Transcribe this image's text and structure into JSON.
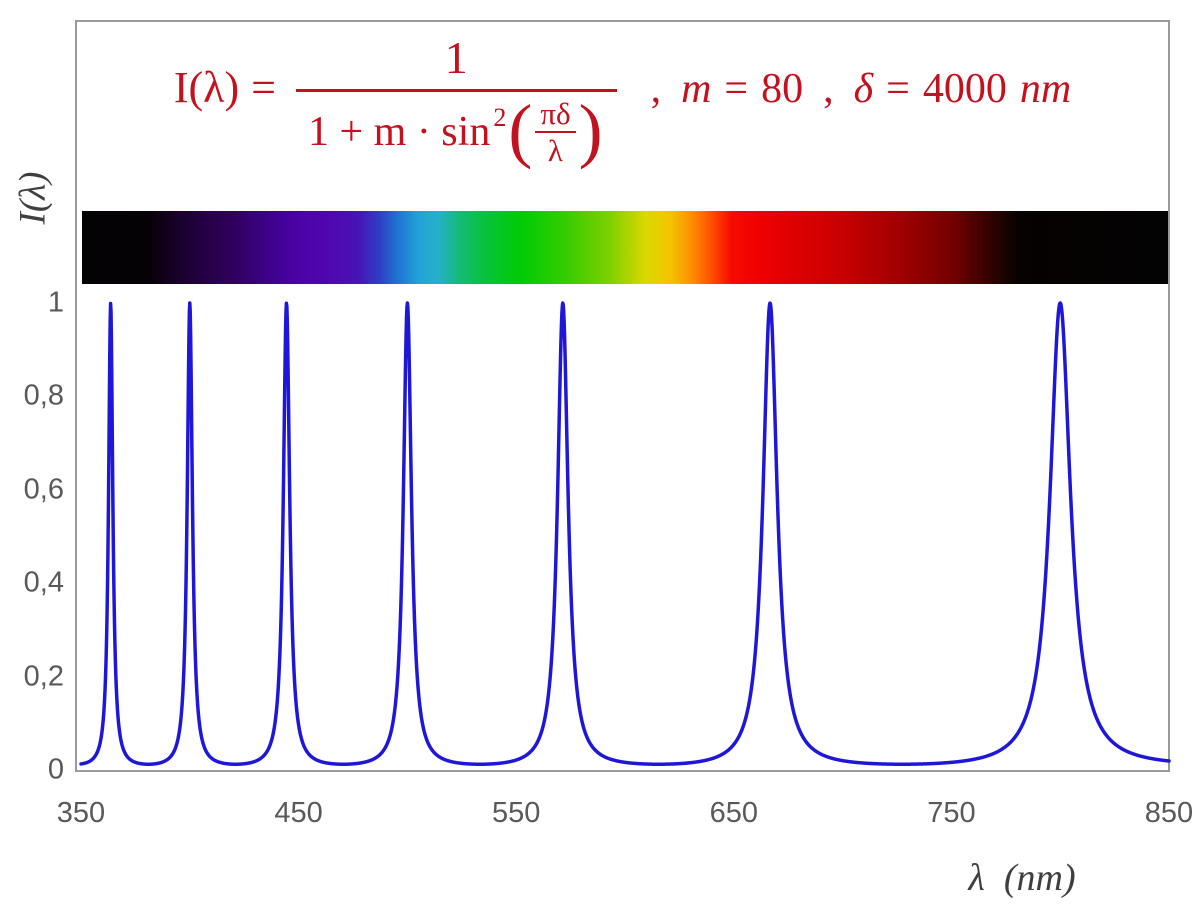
{
  "figure": {
    "frame_border_color": "#9a9a9a",
    "background_color": "#ffffff"
  },
  "formula": {
    "color": "#c3121f",
    "lhs": "I(λ)",
    "eq": "=",
    "numerator": "1",
    "den_prefix": "1 + m · sin",
    "den_exponent": "2",
    "paren_open": "(",
    "paren_close": ")",
    "inner_num": "πδ",
    "inner_den": "λ",
    "comma1": ",",
    "p1_var": "m",
    "p1_eq": "=",
    "p1_val": "80",
    "comma2": ",",
    "p2_var": "δ",
    "p2_eq": "=",
    "p2_val": "4000",
    "p2_unit": "nm"
  },
  "spectrum_bar": {
    "wavelength_range_nm": [
      350,
      850
    ],
    "stops": [
      {
        "nm": 350,
        "color": "#030303"
      },
      {
        "nm": 381,
        "color": "#060107"
      },
      {
        "nm": 390,
        "color": "#140120"
      },
      {
        "nm": 398,
        "color": "#1d0133"
      },
      {
        "nm": 408,
        "color": "#260147"
      },
      {
        "nm": 420,
        "color": "#2f015e"
      },
      {
        "nm": 434,
        "color": "#3b0284"
      },
      {
        "nm": 448,
        "color": "#4a02a5"
      },
      {
        "nm": 463,
        "color": "#5106b0"
      },
      {
        "nm": 477,
        "color": "#4813b6"
      },
      {
        "nm": 487,
        "color": "#2e3ec6"
      },
      {
        "nm": 495,
        "color": "#1f72d2"
      },
      {
        "nm": 505,
        "color": "#23a2d8"
      },
      {
        "nm": 514,
        "color": "#26b0ca"
      },
      {
        "nm": 524,
        "color": "#13bb74"
      },
      {
        "nm": 537,
        "color": "#07c334"
      },
      {
        "nm": 552,
        "color": "#00cb06"
      },
      {
        "nm": 573,
        "color": "#36cc00"
      },
      {
        "nm": 593,
        "color": "#7fd000"
      },
      {
        "nm": 610,
        "color": "#dcd800"
      },
      {
        "nm": 621,
        "color": "#f4c300"
      },
      {
        "nm": 631,
        "color": "#ff8c00"
      },
      {
        "nm": 640,
        "color": "#ff4d00"
      },
      {
        "nm": 649,
        "color": "#f90a00"
      },
      {
        "nm": 663,
        "color": "#ee0000"
      },
      {
        "nm": 700,
        "color": "#c80000"
      },
      {
        "nm": 729,
        "color": "#9c0000"
      },
      {
        "nm": 752,
        "color": "#710000"
      },
      {
        "nm": 765,
        "color": "#3d0000"
      },
      {
        "nm": 774,
        "color": "#1d0400"
      },
      {
        "nm": 781,
        "color": "#070101"
      },
      {
        "nm": 850,
        "color": "#030303"
      }
    ]
  },
  "chart_data": {
    "type": "line",
    "function": "I(λ) = 1 / (1 + m·sin²(πδ/λ))",
    "params": {
      "m": 80,
      "delta_nm": 4000
    },
    "sample_step_nm": 0.2,
    "peaks_nm": [
      363.64,
      400,
      444.44,
      500,
      571.43,
      666.67,
      800
    ],
    "curve_color": "#1f17d8",
    "line_width": 3.5,
    "grid": false,
    "legend": false,
    "x_axis": {
      "label": "λ  (nm)",
      "range": [
        350,
        850
      ],
      "ticks": [
        "350",
        "450",
        "550",
        "650",
        "750",
        "850"
      ],
      "tick_values": [
        350,
        450,
        550,
        650,
        750,
        850
      ]
    },
    "y_axis": {
      "label": "I(λ)",
      "range": [
        0,
        1
      ],
      "ticks": [
        "0",
        "0,2",
        "0,4",
        "0,6",
        "0,8",
        "1"
      ],
      "tick_values": [
        0,
        0.2,
        0.4,
        0.6,
        0.8,
        1
      ]
    },
    "axis_text_color": "#595959",
    "axis_title_color": "#3f3f3f"
  }
}
